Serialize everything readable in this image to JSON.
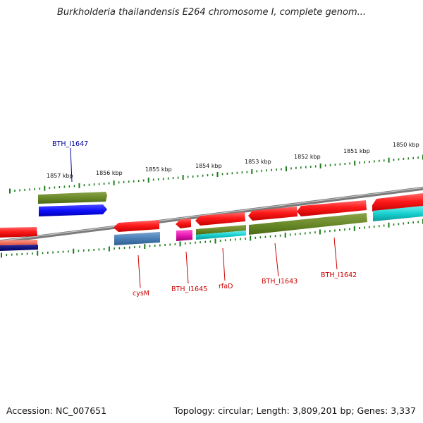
{
  "title": "Burkholderia thailandensis E264 chromosome I, complete genom...",
  "footer": {
    "accession": "Accession: NC_007651",
    "topology": "Topology: circular; Length: 3,809,201 bp; Genes: 3,337"
  },
  "colors": {
    "backbone": "#8a8a8a",
    "tick": "#1a7a1a",
    "label_red": "#cc0000",
    "label_blue": "#000099"
  },
  "kbp_labels": [
    {
      "text": "1857 kbp"
    },
    {
      "text": "1856 kbp"
    },
    {
      "text": "1855 kbp"
    },
    {
      "text": "1854 kbp"
    },
    {
      "text": "1853 kbp"
    },
    {
      "text": "1852 kbp"
    },
    {
      "text": "1851 kbp"
    },
    {
      "text": "1850 kbp"
    }
  ],
  "gene_labels": [
    {
      "text": "BTH_I1647",
      "color": "#000099"
    },
    {
      "text": "cysM",
      "color": "#cc0000"
    },
    {
      "text": "BTH_I1645",
      "color": "#cc0000"
    },
    {
      "text": "rfaD",
      "color": "#cc0000"
    },
    {
      "text": "BTH_I1643",
      "color": "#cc0000"
    },
    {
      "text": "BTH_I1642",
      "color": "#cc0000"
    }
  ]
}
